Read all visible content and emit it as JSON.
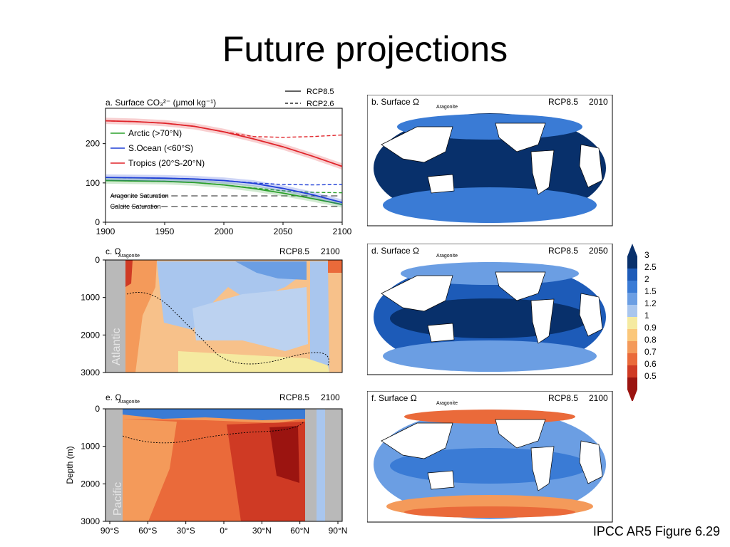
{
  "slide": {
    "title": "Future projections",
    "credit": "IPCC AR5 Figure 6.29"
  },
  "colors": {
    "arctic": "#2ca02c",
    "southern_ocean": "#1f3fd6",
    "tropics": "#e0242a",
    "land": "#ffffff",
    "section_land": "#b9b9b9"
  },
  "chart_data": [
    {
      "id": "a",
      "type": "line",
      "title": "a. Surface CO₃²⁻ (μmol kg⁻¹)",
      "scenario_legend": [
        {
          "label": "RCP8.5",
          "style": "solid"
        },
        {
          "label": "RCP2.6",
          "style": "dashed"
        }
      ],
      "x_ticks": [
        1900,
        1950,
        2000,
        2050,
        2100
      ],
      "y_ticks": [
        0,
        100,
        200
      ],
      "xlim": [
        1900,
        2100
      ],
      "ylim": [
        0,
        290
      ],
      "x": [
        1900,
        1925,
        1950,
        1975,
        2000,
        2025,
        2050,
        2075,
        2100
      ],
      "series": [
        {
          "name": "Arctic (>70°N)",
          "color": "#2ca02c",
          "rcp85": [
            106,
            105,
            104,
            101,
            95,
            86,
            74,
            60,
            45
          ],
          "rcp26": [
            106,
            105,
            104,
            101,
            95,
            87,
            80,
            76,
            75
          ]
        },
        {
          "name": "S.Ocean (<60°S)",
          "color": "#1f3fd6",
          "rcp85": [
            114,
            113,
            112,
            110,
            106,
            99,
            86,
            70,
            50
          ],
          "rcp26": [
            114,
            113,
            112,
            110,
            106,
            100,
            96,
            95,
            96
          ]
        },
        {
          "name": "Tropics (20°S-20°N)",
          "color": "#e0242a",
          "rcp85": [
            258,
            256,
            252,
            244,
            230,
            212,
            192,
            168,
            142
          ],
          "rcp26": [
            258,
            256,
            252,
            244,
            230,
            218,
            216,
            218,
            222
          ]
        }
      ],
      "reference_lines": [
        {
          "label": "Aragonite Saturation",
          "value": 67
        },
        {
          "label": "Calcite Saturation",
          "value": 40
        }
      ]
    },
    {
      "id": "c",
      "type": "heatmap",
      "title": "c. Ω",
      "subscript": "Aragonite",
      "scenario": "RCP8.5",
      "year": "2100",
      "basin": "Atlantic",
      "y_ticks": [
        0,
        1000,
        2000,
        3000
      ]
    },
    {
      "id": "e",
      "type": "heatmap",
      "title": "e. Ω",
      "subscript": "Aragonite",
      "scenario": "RCP8.5",
      "year": "2100",
      "basin": "Pacific",
      "ylabel": "Depth (m)",
      "y_ticks": [
        0,
        1000,
        2000,
        3000
      ],
      "x_ticks": [
        "90°S",
        "60°S",
        "30°S",
        "0°",
        "30°N",
        "60°N",
        "90°N"
      ]
    },
    {
      "id": "b",
      "type": "heatmap",
      "title": "b. Surface Ω",
      "subscript": "Aragonite",
      "scenario": "RCP8.5",
      "year": "2010"
    },
    {
      "id": "d",
      "type": "heatmap",
      "title": "d. Surface Ω",
      "subscript": "Aragonite",
      "scenario": "RCP8.5",
      "year": "2050"
    },
    {
      "id": "f",
      "type": "heatmap",
      "title": "f. Surface Ω",
      "subscript": "Aragonite",
      "scenario": "RCP8.5",
      "year": "2100"
    }
  ],
  "colorbar": {
    "labels": [
      "3",
      "2.5",
      "2",
      "1.5",
      "1.2",
      "1",
      "0.9",
      "0.8",
      "0.7",
      "0.6",
      "0.5"
    ],
    "colors": [
      "#08306b",
      "#1d5bb8",
      "#3a7bd5",
      "#6b9ee3",
      "#a9c6ee",
      "#f5eaa0",
      "#fbc77a",
      "#f49a5a",
      "#ea6a3a",
      "#cf3a24",
      "#9b1410"
    ]
  }
}
